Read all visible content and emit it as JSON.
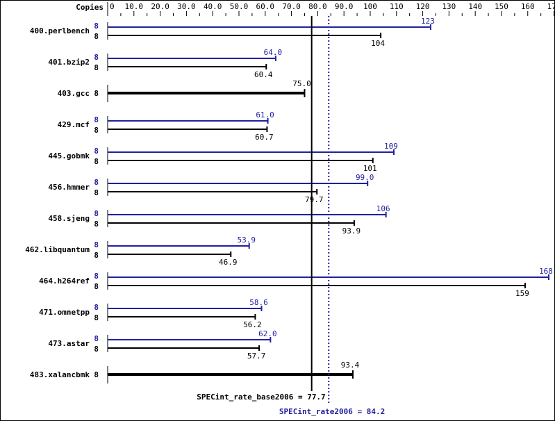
{
  "chart_data": {
    "type": "bar",
    "orientation": "horizontal",
    "axis_label": "Copies",
    "xlim": [
      0,
      170
    ],
    "ticks": [
      "0",
      "10.0",
      "20.0",
      "30.0",
      "40.0",
      "50.0",
      "60.0",
      "70.0",
      "80.0",
      "90.0",
      "100",
      "110",
      "120",
      "130",
      "140",
      "150",
      "160",
      "170"
    ],
    "tick_values": [
      0,
      10,
      20,
      30,
      40,
      50,
      60,
      70,
      80,
      90,
      100,
      110,
      120,
      130,
      140,
      150,
      160,
      170
    ],
    "colors": {
      "peak": "#2020a0",
      "base": "#000000"
    },
    "categories": [
      "400.perlbench",
      "401.bzip2",
      "403.gcc",
      "429.mcf",
      "445.gobmk",
      "456.hmmer",
      "458.sjeng",
      "462.libquantum",
      "464.h264ref",
      "471.omnetpp",
      "473.astar",
      "483.xalancbmk"
    ],
    "series": [
      {
        "name": "SPECint_rate2006",
        "copies": [
          8,
          8,
          null,
          8,
          8,
          8,
          8,
          8,
          8,
          8,
          8,
          null
        ],
        "values": [
          123,
          64.0,
          null,
          61.0,
          109,
          99.0,
          106,
          53.9,
          168,
          58.6,
          62.0,
          null
        ],
        "labels": [
          "123",
          "64.0",
          "",
          "61.0",
          "109",
          "99.0",
          "106",
          "53.9",
          "168",
          "58.6",
          "62.0",
          ""
        ]
      },
      {
        "name": "SPECint_rate_base2006",
        "copies": [
          8,
          8,
          8,
          8,
          8,
          8,
          8,
          8,
          8,
          8,
          8,
          8
        ],
        "values": [
          104,
          60.4,
          75.0,
          60.7,
          101,
          79.7,
          93.9,
          46.9,
          159,
          56.2,
          57.7,
          93.4
        ],
        "labels": [
          "104",
          "60.4",
          "75.0",
          "60.7",
          "101",
          "79.7",
          "93.9",
          "46.9",
          "159",
          "56.2",
          "57.7",
          "93.4"
        ]
      }
    ],
    "reference_lines": [
      {
        "label": "SPECint_rate_base2006 = 77.7",
        "value": 77.7,
        "style": "solid",
        "color": "#000000"
      },
      {
        "label": "SPECint_rate2006 = 84.2",
        "value": 84.2,
        "style": "dotted",
        "color": "#2020a0"
      }
    ]
  }
}
